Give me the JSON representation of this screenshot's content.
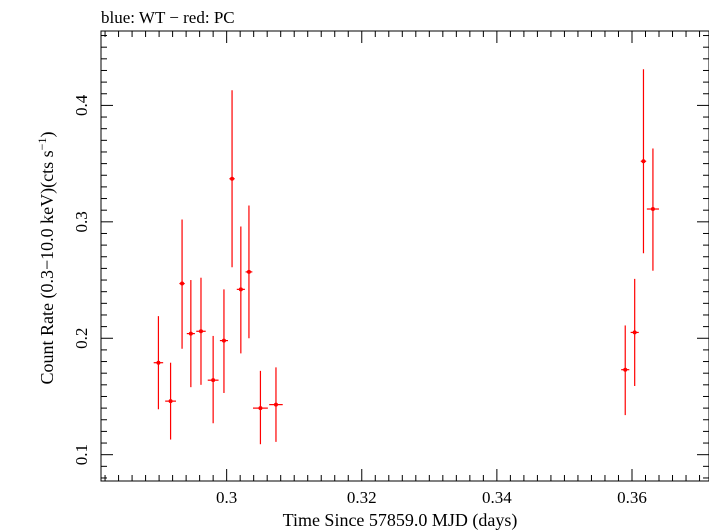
{
  "chart_data": {
    "type": "scatter",
    "title": "blue: WT − red: PC",
    "xlabel": "Time Since 57859.0 MJD (days)",
    "ylabel_main": "Count Rate (0.3−10.0 keV)(cts s",
    "ylabel_sup": "−1",
    "ylabel_end": ")",
    "xlim": [
      0.2814,
      0.3714
    ],
    "ylim": [
      0.0774,
      0.4639
    ],
    "xticks": [
      0.3,
      0.32,
      0.34,
      0.36
    ],
    "xtick_labels": [
      "0.3",
      "0.32",
      "0.34",
      "0.36"
    ],
    "yticks": [
      0.1,
      0.2,
      0.3,
      0.4
    ],
    "ytick_labels": [
      "0.1",
      "0.2",
      "0.3",
      "0.4"
    ],
    "series": [
      {
        "color": "#ff0000",
        "points": [
          {
            "x": 0.2899,
            "y": 0.179,
            "xerr": 0.0007,
            "ylo": 0.139,
            "yhi": 0.219
          },
          {
            "x": 0.2917,
            "y": 0.146,
            "xerr": 0.0008,
            "ylo": 0.113,
            "yhi": 0.179
          },
          {
            "x": 0.2934,
            "y": 0.247,
            "xerr": 0.0004,
            "ylo": 0.191,
            "yhi": 0.302
          },
          {
            "x": 0.2947,
            "y": 0.204,
            "xerr": 0.0006,
            "ylo": 0.158,
            "yhi": 0.25
          },
          {
            "x": 0.2962,
            "y": 0.206,
            "xerr": 0.0007,
            "ylo": 0.16,
            "yhi": 0.252
          },
          {
            "x": 0.298,
            "y": 0.164,
            "xerr": 0.0008,
            "ylo": 0.127,
            "yhi": 0.202
          },
          {
            "x": 0.2996,
            "y": 0.198,
            "xerr": 0.0006,
            "ylo": 0.153,
            "yhi": 0.242
          },
          {
            "x": 0.3008,
            "y": 0.337,
            "xerr": 0.0004,
            "ylo": 0.261,
            "yhi": 0.413
          },
          {
            "x": 0.3021,
            "y": 0.242,
            "xerr": 0.0006,
            "ylo": 0.187,
            "yhi": 0.296
          },
          {
            "x": 0.3033,
            "y": 0.257,
            "xerr": 0.0005,
            "ylo": 0.2,
            "yhi": 0.314
          },
          {
            "x": 0.305,
            "y": 0.14,
            "xerr": 0.0011,
            "ylo": 0.109,
            "yhi": 0.172
          },
          {
            "x": 0.3073,
            "y": 0.143,
            "xerr": 0.001,
            "ylo": 0.111,
            "yhi": 0.175
          },
          {
            "x": 0.359,
            "y": 0.173,
            "xerr": 0.0006,
            "ylo": 0.134,
            "yhi": 0.211
          },
          {
            "x": 0.3604,
            "y": 0.205,
            "xerr": 0.0006,
            "ylo": 0.159,
            "yhi": 0.251
          },
          {
            "x": 0.3617,
            "y": 0.352,
            "xerr": 0.0004,
            "ylo": 0.273,
            "yhi": 0.431
          },
          {
            "x": 0.3631,
            "y": 0.311,
            "xerr": 0.0009,
            "ylo": 0.258,
            "yhi": 0.363
          }
        ]
      }
    ]
  }
}
